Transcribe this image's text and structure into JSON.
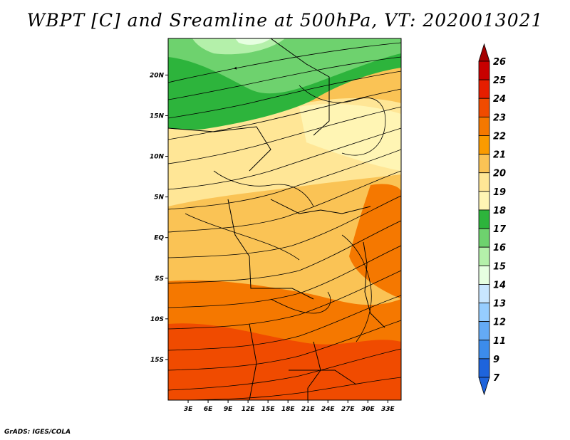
{
  "title": "WBPT [C] and Sreamline at 500hPa, VT: 2020013021",
  "credit": "GrADS: IGES/COLA",
  "map": {
    "lat_range": [
      -20,
      24.5
    ],
    "lon_range": [
      0,
      35
    ],
    "lat_ticks": [
      {
        "value": 20,
        "label": "20N"
      },
      {
        "value": 15,
        "label": "15N"
      },
      {
        "value": 10,
        "label": "10N"
      },
      {
        "value": 5,
        "label": "5N"
      },
      {
        "value": 0,
        "label": "EQ"
      },
      {
        "value": -5,
        "label": "5S"
      },
      {
        "value": -10,
        "label": "10S"
      },
      {
        "value": -15,
        "label": "15S"
      }
    ],
    "lon_ticks": [
      {
        "value": 3,
        "label": "3E"
      },
      {
        "value": 6,
        "label": "6E"
      },
      {
        "value": 9,
        "label": "9E"
      },
      {
        "value": 12,
        "label": "12E"
      },
      {
        "value": 15,
        "label": "15E"
      },
      {
        "value": 18,
        "label": "18E"
      },
      {
        "value": 21,
        "label": "21E"
      },
      {
        "value": 24,
        "label": "24E"
      },
      {
        "value": 27,
        "label": "27E"
      },
      {
        "value": 30,
        "label": "30E"
      },
      {
        "value": 33,
        "label": "33E"
      }
    ]
  },
  "colorbar": {
    "levels": [
      {
        "label": "26",
        "color": "#a50000"
      },
      {
        "label": "25",
        "color": "#c80000"
      },
      {
        "label": "24",
        "color": "#e61e00"
      },
      {
        "label": "23",
        "color": "#f04b00"
      },
      {
        "label": "22",
        "color": "#f57800"
      },
      {
        "label": "21",
        "color": "#fa9b00"
      },
      {
        "label": "20",
        "color": "#fac355"
      },
      {
        "label": "19",
        "color": "#ffe696"
      },
      {
        "label": "18",
        "color": "#fff5b4"
      },
      {
        "label": "17",
        "color": "#2db43c"
      },
      {
        "label": "16",
        "color": "#6ed26e"
      },
      {
        "label": "15",
        "color": "#b4f0aa"
      },
      {
        "label": "14",
        "color": "#e6ffe1"
      },
      {
        "label": "13",
        "color": "#c8e6ff"
      },
      {
        "label": "12",
        "color": "#96cdff"
      },
      {
        "label": "11",
        "color": "#64aaf5"
      },
      {
        "label": "9",
        "color": "#3c8ceb"
      },
      {
        "label": "7",
        "color": "#1e64dc"
      }
    ],
    "bottom_color": "#1e64dc"
  }
}
